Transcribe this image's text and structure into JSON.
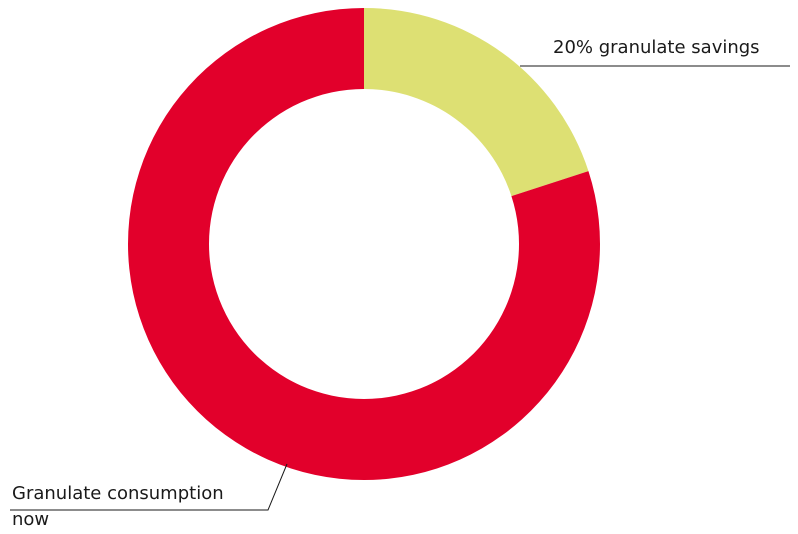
{
  "chart_data": {
    "type": "donut",
    "categories": [
      "20% granulate savings",
      "Granulate consumption now"
    ],
    "values": [
      20,
      80
    ],
    "colors": [
      "#dde073",
      "#e2002b"
    ]
  }
}
